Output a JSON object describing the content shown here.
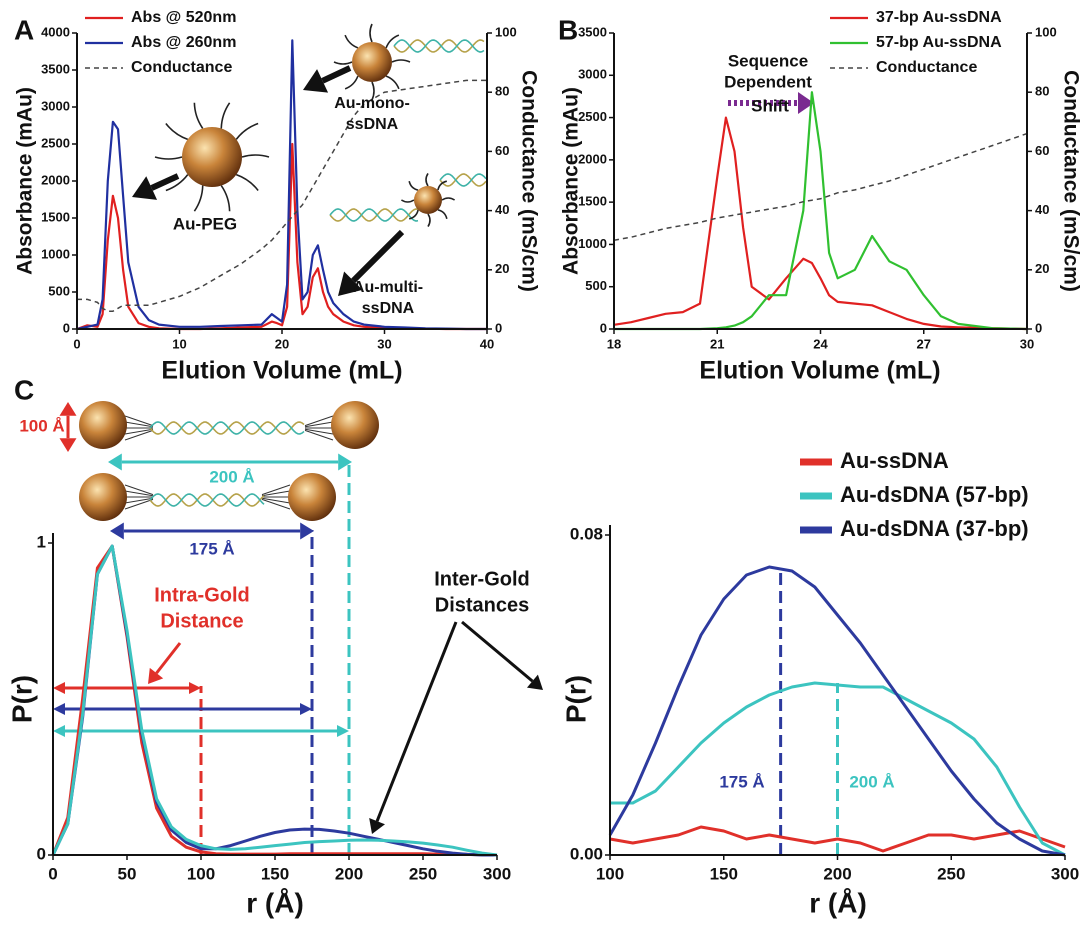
{
  "chart_data": [
    {
      "type": "line",
      "label": "A",
      "xlabel": "Elution Volume (mL)",
      "ylabel": "Absorbance (mAu)",
      "y2label": "Conductance (mS/cm)",
      "xlim": [
        0,
        40
      ],
      "ylim": [
        0,
        4000
      ],
      "y2lim": [
        0,
        100
      ],
      "xticks": [
        0,
        10,
        20,
        30,
        40
      ],
      "yticks": [
        0,
        500,
        1000,
        1500,
        2000,
        2500,
        3000,
        3500,
        4000
      ],
      "y2ticks": [
        0,
        20,
        40,
        60,
        80,
        100
      ],
      "legend": "upper left",
      "x": [
        0,
        1,
        2,
        2.5,
        3,
        3.5,
        4,
        4.5,
        5,
        6,
        7,
        8,
        10,
        12,
        14,
        16,
        18,
        19,
        19.5,
        20,
        20.5,
        21,
        21.5,
        22,
        22.5,
        23,
        23.5,
        24,
        24.5,
        25,
        26,
        27,
        28,
        30,
        32,
        34,
        36,
        38,
        40
      ],
      "series": [
        {
          "name": "Abs @ 520nm",
          "color": "#e02020",
          "linestyle": "solid",
          "values": [
            0,
            50,
            30,
            200,
            1200,
            1800,
            1500,
            800,
            300,
            80,
            30,
            10,
            0,
            0,
            10,
            20,
            30,
            100,
            80,
            50,
            300,
            2500,
            900,
            200,
            300,
            700,
            820,
            500,
            300,
            200,
            100,
            50,
            30,
            10,
            10,
            5,
            0,
            0,
            0
          ]
        },
        {
          "name": "Abs @ 260nm",
          "color": "#2030a0",
          "linestyle": "solid",
          "values": [
            0,
            30,
            60,
            400,
            2000,
            2800,
            2700,
            1800,
            900,
            300,
            120,
            60,
            30,
            30,
            40,
            50,
            60,
            200,
            150,
            100,
            600,
            3900,
            1600,
            400,
            500,
            1000,
            1130,
            800,
            500,
            350,
            200,
            100,
            60,
            30,
            20,
            10,
            5,
            0,
            0
          ]
        },
        {
          "name": "Conductance",
          "color": "#444444",
          "linestyle": "dashed",
          "axis": "y2",
          "values": [
            10,
            10,
            9,
            7,
            6,
            6,
            7,
            8,
            8,
            8,
            8,
            9,
            11,
            14,
            18,
            22,
            27,
            30,
            32,
            34,
            36,
            38,
            40,
            42,
            45,
            48,
            51,
            54,
            57,
            60,
            66,
            72,
            76,
            80,
            81,
            82,
            83,
            84,
            84
          ]
        }
      ],
      "annotations": [
        {
          "lines": [
            "Au-PEG"
          ]
        },
        {
          "lines": [
            "Au-mono-",
            "ssDNA"
          ]
        },
        {
          "lines": [
            "Au-multi-",
            "ssDNA"
          ]
        }
      ]
    },
    {
      "type": "line",
      "label": "B",
      "xlabel": "Elution Volume (mL)",
      "ylabel": "Absorbance (mAu)",
      "y2label": "Conductance (mS/cm)",
      "xlim": [
        18,
        30
      ],
      "ylim": [
        0,
        3500
      ],
      "y2lim": [
        0,
        100
      ],
      "xticks": [
        18,
        21,
        24,
        27,
        30
      ],
      "yticks": [
        0,
        500,
        1000,
        1500,
        2000,
        2500,
        3000,
        3500
      ],
      "y2ticks": [
        0,
        20,
        40,
        60,
        80,
        100
      ],
      "legend": "upper right",
      "x": [
        18,
        18.5,
        19,
        19.5,
        20,
        20.5,
        21,
        21.25,
        21.5,
        21.75,
        22,
        22.5,
        23,
        23.5,
        23.75,
        24,
        24.25,
        24.5,
        25,
        25.5,
        26,
        26.5,
        27,
        27.5,
        28,
        29,
        30
      ],
      "series": [
        {
          "name": "37-bp Au-ssDNA",
          "color": "#e02020",
          "linestyle": "solid",
          "values": [
            50,
            80,
            130,
            180,
            200,
            300,
            1800,
            2500,
            2100,
            1200,
            500,
            350,
            600,
            830,
            780,
            600,
            400,
            320,
            300,
            280,
            200,
            120,
            60,
            30,
            20,
            10,
            0
          ]
        },
        {
          "name": "57-bp Au-ssDNA",
          "color": "#30c030",
          "linestyle": "solid",
          "values": [
            0,
            0,
            0,
            0,
            0,
            0,
            10,
            20,
            40,
            80,
            150,
            400,
            400,
            1400,
            2800,
            2100,
            900,
            600,
            700,
            1100,
            800,
            700,
            400,
            150,
            60,
            10,
            0
          ]
        },
        {
          "name": "Conductance",
          "color": "#444444",
          "linestyle": "dashed",
          "axis": "y2",
          "values": [
            30,
            31,
            32.5,
            34,
            35,
            36,
            37.5,
            38,
            38.5,
            39,
            39.5,
            40.5,
            41.5,
            43,
            43.5,
            44,
            45,
            46,
            47,
            48.5,
            50,
            52,
            54,
            56,
            58,
            62,
            66
          ]
        }
      ],
      "annotations": [
        {
          "lines": [
            "Sequence"
          ]
        },
        {
          "lines": [
            "Dependent"
          ]
        },
        {
          "lines": [
            "Shift"
          ]
        }
      ]
    },
    {
      "type": "line",
      "label": "C",
      "xlabel": "r (Å)",
      "ylabel": "P(r)",
      "xlim": [
        0,
        300
      ],
      "ylim": [
        0,
        1
      ],
      "xticks": [
        0,
        50,
        100,
        150,
        200,
        250,
        300
      ],
      "yticks": [
        0,
        1
      ],
      "x": [
        0,
        10,
        20,
        30,
        40,
        50,
        60,
        70,
        80,
        90,
        100,
        110,
        120,
        130,
        140,
        150,
        160,
        170,
        180,
        190,
        200,
        210,
        220,
        230,
        240,
        250,
        260,
        270,
        280,
        290,
        300
      ],
      "series": [
        {
          "color": "#e0302a",
          "linestyle": "solid",
          "values": [
            0,
            0.12,
            0.5,
            0.92,
            0.99,
            0.7,
            0.36,
            0.15,
            0.06,
            0.025,
            0.01,
            0.004,
            0.003,
            0.003,
            0.003,
            0.003,
            0.004,
            0.004,
            0.004,
            0.004,
            0.004,
            0.004,
            0.004,
            0.004,
            0.004,
            0.004,
            0.003,
            0.003,
            0.002,
            0.001,
            0
          ]
        },
        {
          "color": "#2d3a9e",
          "linestyle": "solid",
          "values": [
            0,
            0.1,
            0.44,
            0.9,
            0.99,
            0.71,
            0.39,
            0.17,
            0.08,
            0.04,
            0.02,
            0.02,
            0.03,
            0.045,
            0.06,
            0.072,
            0.08,
            0.083,
            0.082,
            0.077,
            0.07,
            0.06,
            0.05,
            0.04,
            0.03,
            0.02,
            0.012,
            0.006,
            0.002,
            0,
            0
          ]
        },
        {
          "color": "#3cc4c0",
          "linestyle": "solid",
          "values": [
            0,
            0.1,
            0.45,
            0.9,
            0.99,
            0.72,
            0.4,
            0.18,
            0.09,
            0.05,
            0.03,
            0.02,
            0.018,
            0.02,
            0.025,
            0.03,
            0.035,
            0.04,
            0.043,
            0.045,
            0.047,
            0.048,
            0.047,
            0.045,
            0.042,
            0.038,
            0.032,
            0.025,
            0.015,
            0.006,
            0
          ]
        }
      ],
      "reference_lines": [
        {
          "x": 100,
          "color": "#e0302a"
        },
        {
          "x": 175,
          "color": "#2d3a9e"
        },
        {
          "x": 200,
          "color": "#3cc4c0"
        }
      ],
      "annotations": [
        {
          "lines": [
            "Intra-Gold",
            "Distance"
          ]
        },
        {
          "lines": [
            "Inter-Gold",
            "Distances"
          ]
        },
        {
          "lines": [
            "100 Å"
          ]
        },
        {
          "lines": [
            "200 Å"
          ]
        },
        {
          "lines": [
            "175 Å"
          ]
        }
      ]
    },
    {
      "type": "line",
      "xlabel": "r (Å)",
      "ylabel": "P(r)",
      "xlim": [
        100,
        300
      ],
      "ylim": [
        0,
        0.08
      ],
      "xticks": [
        100,
        150,
        200,
        250,
        300
      ],
      "yticks": [
        {
          "value": 0,
          "label": "0.00"
        },
        {
          "value": 0.08,
          "label": "0.08"
        }
      ],
      "legend": "upper right",
      "x": [
        100,
        110,
        120,
        130,
        140,
        150,
        160,
        170,
        180,
        190,
        200,
        210,
        220,
        230,
        240,
        250,
        260,
        270,
        280,
        290,
        300
      ],
      "series": [
        {
          "name": "Au-ssDNA",
          "color": "#e0302a",
          "linestyle": "solid",
          "values": [
            0.004,
            0.003,
            0.004,
            0.005,
            0.007,
            0.006,
            0.004,
            0.005,
            0.004,
            0.003,
            0.004,
            0.003,
            0.001,
            0.003,
            0.005,
            0.005,
            0.004,
            0.005,
            0.006,
            0.004,
            0.002
          ]
        },
        {
          "name": "Au-dsDNA (57-bp)",
          "color": "#3cc4c0",
          "linestyle": "solid",
          "values": [
            0.013,
            0.013,
            0.016,
            0.022,
            0.028,
            0.033,
            0.037,
            0.04,
            0.042,
            0.043,
            0.0425,
            0.042,
            0.042,
            0.039,
            0.036,
            0.033,
            0.029,
            0.022,
            0.012,
            0.003,
            0
          ]
        },
        {
          "name": "Au-dsDNA (37-bp)",
          "color": "#2d3a9e",
          "linestyle": "solid",
          "values": [
            0.005,
            0.015,
            0.028,
            0.042,
            0.055,
            0.064,
            0.07,
            0.072,
            0.071,
            0.067,
            0.06,
            0.053,
            0.045,
            0.037,
            0.029,
            0.021,
            0.014,
            0.008,
            0.004,
            0.001,
            0
          ]
        }
      ],
      "reference_lines": [
        {
          "x": 175,
          "color": "#2d3a9e"
        },
        {
          "x": 200,
          "color": "#3cc4c0"
        }
      ],
      "annotations": [
        {
          "lines": [
            "175 Å"
          ]
        },
        {
          "lines": [
            "200 Å"
          ]
        }
      ]
    }
  ]
}
